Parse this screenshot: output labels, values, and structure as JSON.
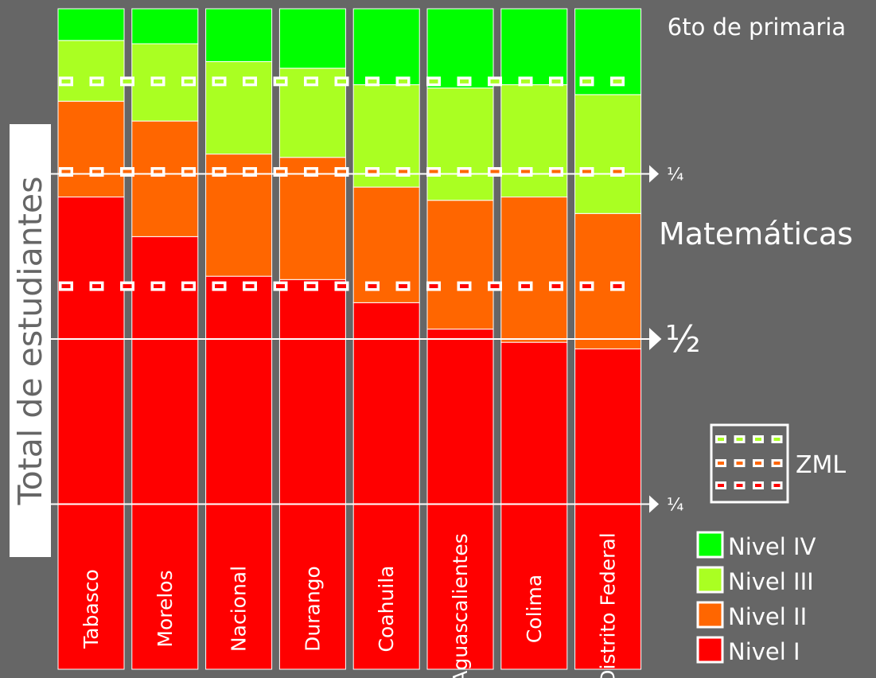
{
  "chart_data": {
    "type": "bar",
    "stacked": true,
    "normalized": true,
    "title": "6to de primaria",
    "subtitle": "Matemáticas",
    "ylabel": "Total de estudiantes",
    "categories": [
      "Tabasco",
      "Morelos",
      "Nacional",
      "Durango",
      "Coahuila",
      "Aguascalientes",
      "Colima",
      "Distrito Federal"
    ],
    "series": [
      {
        "name": "Nivel I",
        "color": "#ff0000",
        "values": [
          71.5,
          65.5,
          59.5,
          59.0,
          55.5,
          51.5,
          49.5,
          48.5
        ]
      },
      {
        "name": "Nivel II",
        "color": "#ff6600",
        "values": [
          14.5,
          17.5,
          18.5,
          18.5,
          17.5,
          19.5,
          22.0,
          20.5
        ]
      },
      {
        "name": "Nivel III",
        "color": "#aaff22",
        "values": [
          9.2,
          11.7,
          14.0,
          13.5,
          15.5,
          17.0,
          17.0,
          18.0
        ]
      },
      {
        "name": "Nivel IV",
        "color": "#00ff00",
        "values": [
          4.8,
          5.3,
          8.0,
          9.0,
          11.5,
          12.0,
          11.5,
          13.0
        ]
      }
    ],
    "ylim": [
      0,
      100
    ],
    "reference_lines": {
      "markers": [
        {
          "value": 25,
          "label": "¼"
        },
        {
          "value": 50,
          "label": "½"
        },
        {
          "value": 75,
          "label": "¼"
        }
      ]
    },
    "zml": {
      "label": "ZML",
      "lines": [
        {
          "value": 89.0,
          "color": "#aaff22"
        },
        {
          "value": 75.3,
          "color": "#ff6600"
        },
        {
          "value": 58.0,
          "color": "#ff0000"
        }
      ]
    },
    "legend_position": "bottom-right"
  }
}
